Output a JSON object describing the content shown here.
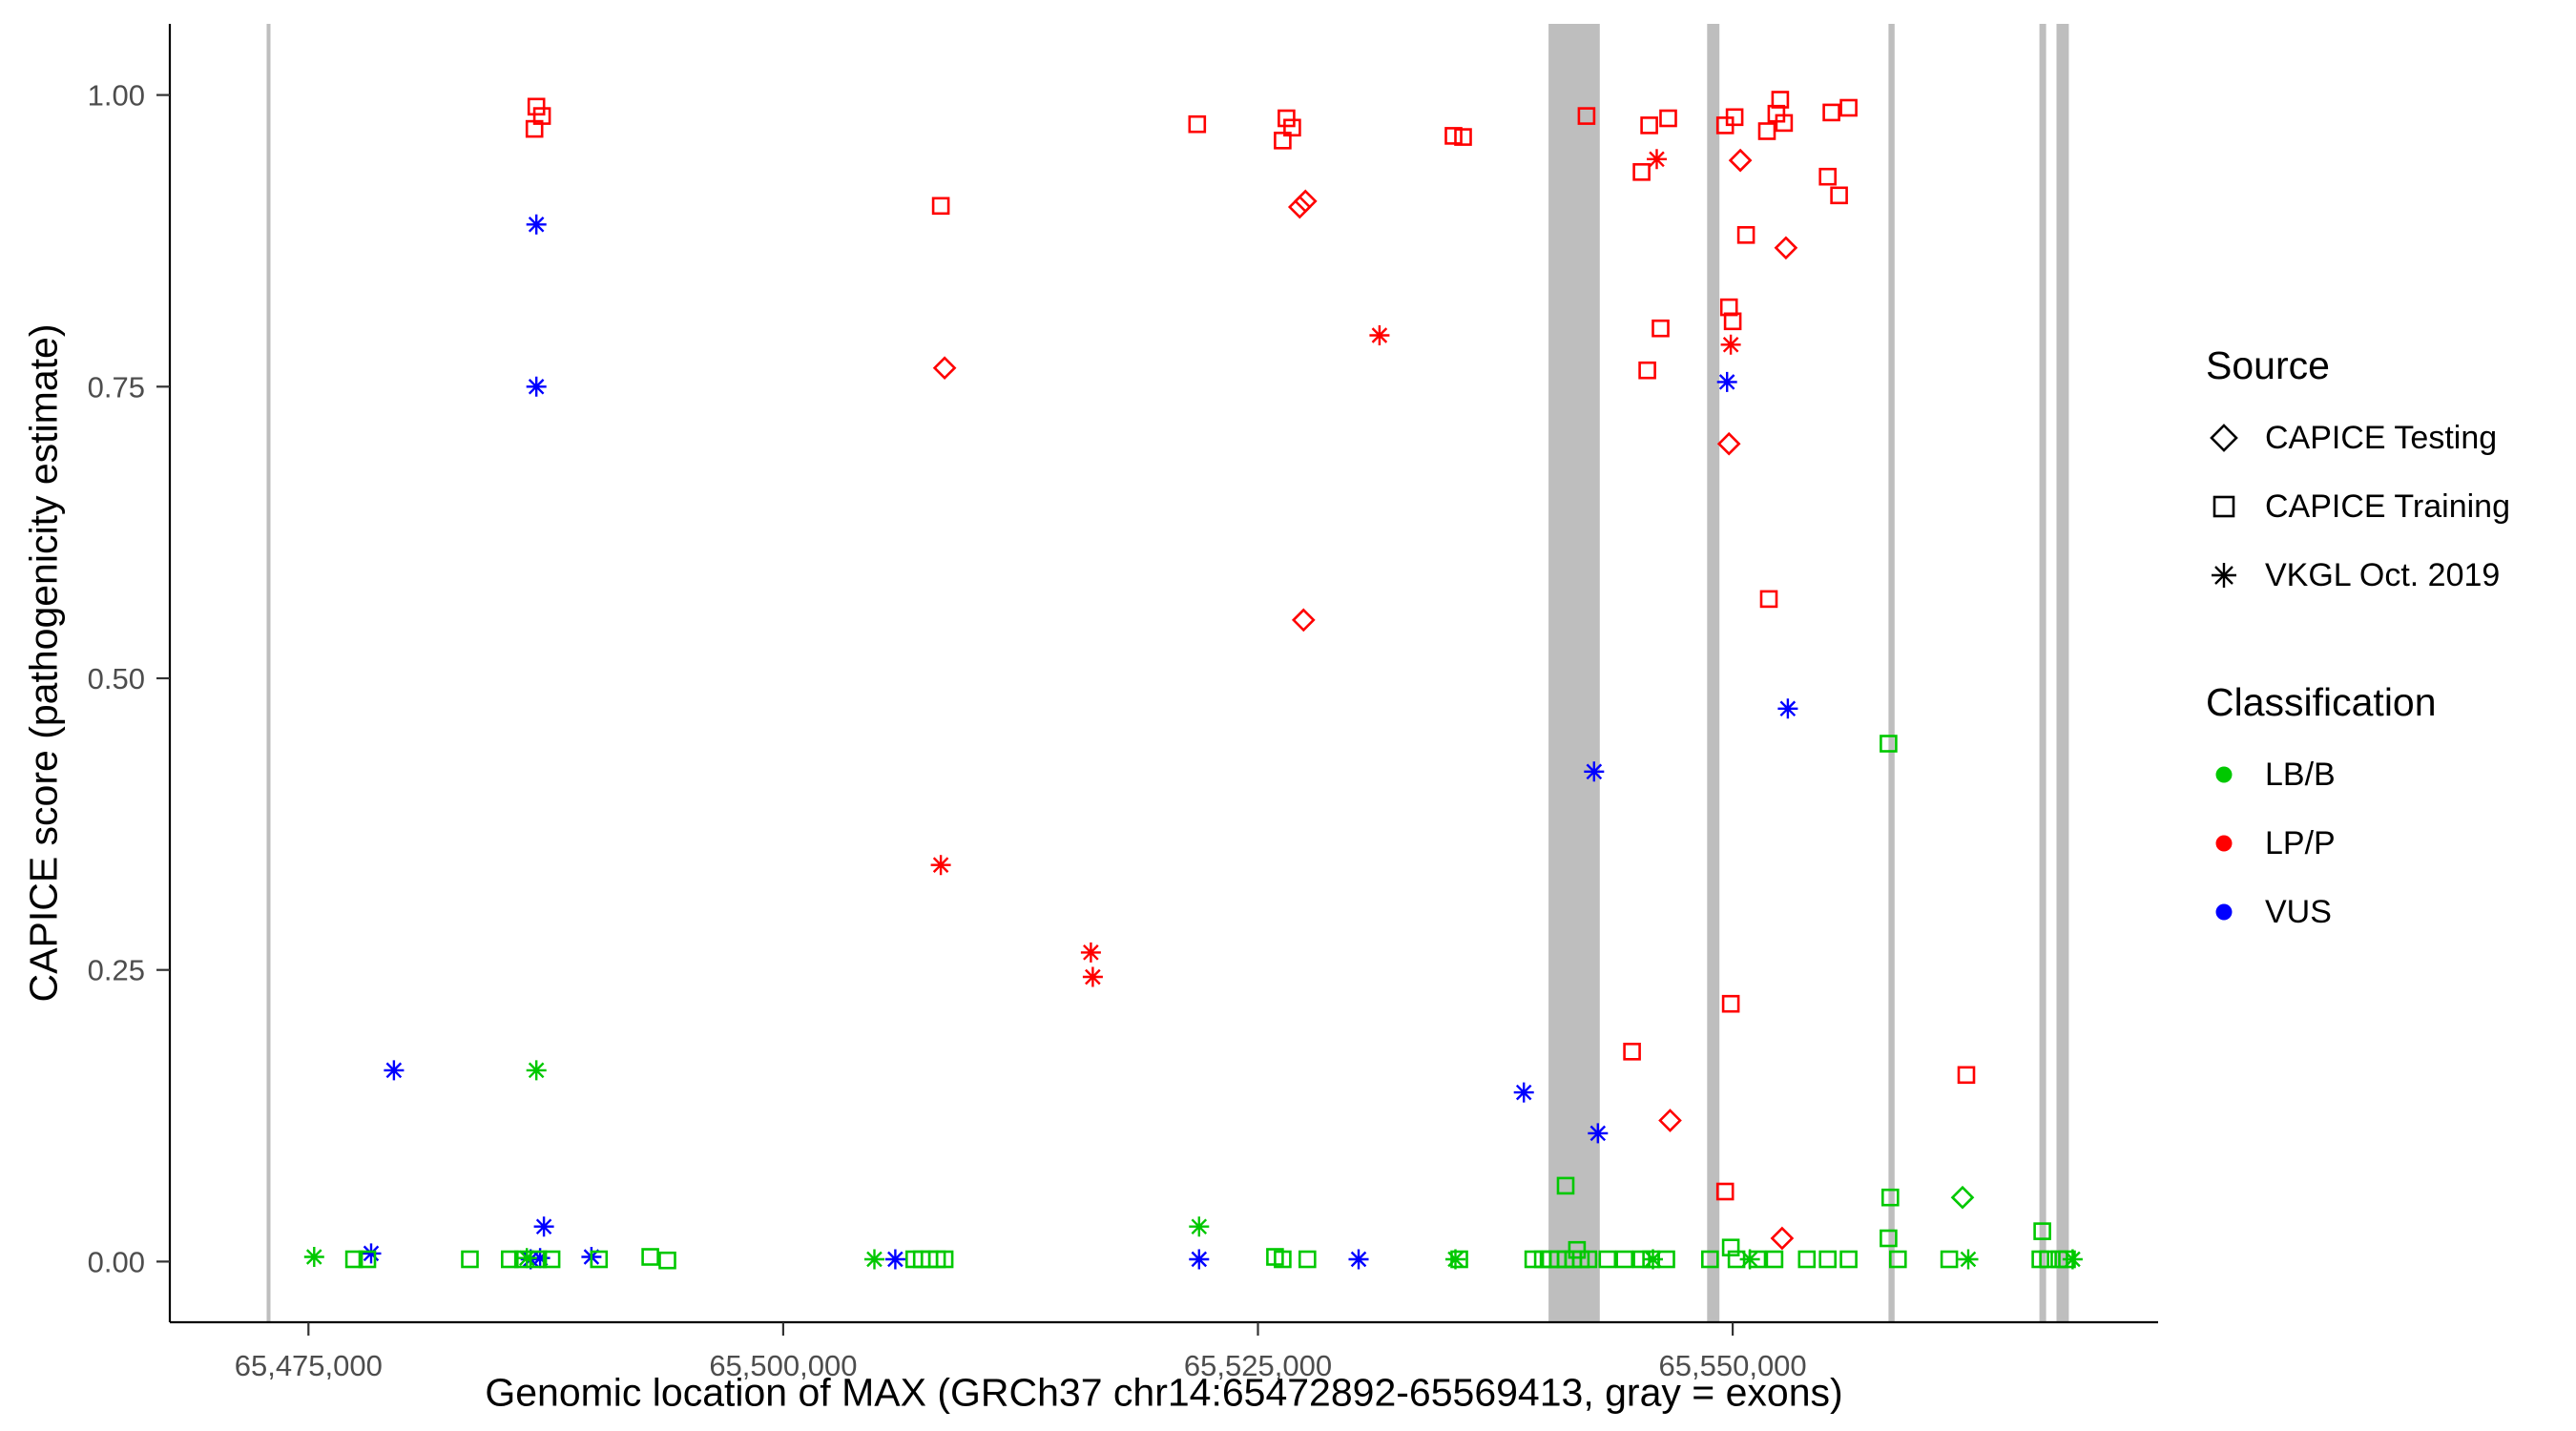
{
  "legend": {
    "source_title": "Source",
    "source_items": [
      {
        "label": "CAPICE Testing",
        "shape": "diamond"
      },
      {
        "label": "CAPICE Training",
        "shape": "square"
      },
      {
        "label": "VKGL Oct. 2019",
        "shape": "asterisk"
      }
    ],
    "class_title": "Classification",
    "class_items": [
      {
        "label": "LB/B",
        "color": "#00C800"
      },
      {
        "label": "LP/P",
        "color": "#FF0000"
      },
      {
        "label": "VUS",
        "color": "#0000FF"
      }
    ]
  },
  "chart_data": {
    "type": "scatter",
    "title": "",
    "xlabel": "Genomic location of MAX (GRCh37 chr14:65472892-65569413, gray = exons)",
    "ylabel": "CAPICE score (pathogenicity estimate)",
    "xlim": [
      65467700,
      65572400
    ],
    "ylim": [
      -0.052,
      1.061
    ],
    "grid": false,
    "legend_position": "right",
    "x_ticks": [
      {
        "v": 65475000,
        "label": "65,475,000"
      },
      {
        "v": 65500000,
        "label": "65,500,000"
      },
      {
        "v": 65525000,
        "label": "65,525,000"
      },
      {
        "v": 65550000,
        "label": "65,550,000"
      }
    ],
    "y_ticks": [
      {
        "v": 0.0,
        "label": "0.00"
      },
      {
        "v": 0.25,
        "label": "0.25"
      },
      {
        "v": 0.5,
        "label": "0.50"
      },
      {
        "v": 0.75,
        "label": "0.75"
      },
      {
        "v": 1.0,
        "label": "1.00"
      }
    ],
    "exon_color": "#BEBEBE",
    "exons": [
      [
        65472800,
        65473000
      ],
      [
        65540300,
        65543000
      ],
      [
        65548650,
        65549300
      ],
      [
        65558200,
        65558520
      ],
      [
        65566150,
        65566500
      ],
      [
        65567050,
        65567700
      ]
    ],
    "shape_by_source": {
      "test": "diamond",
      "train": "square",
      "vkgl": "asterisk"
    },
    "source_labels": {
      "test": "CAPICE Testing",
      "train": "CAPICE Training",
      "vkgl": "VKGL Oct. 2019"
    },
    "color_by_class": {
      "LB/B": "#00C800",
      "LP/P": "#FF0000",
      "VUS": "#0000FF"
    },
    "points": [
      [
        65487000,
        0.99,
        "train",
        "LP/P"
      ],
      [
        65487300,
        0.982,
        "train",
        "LP/P"
      ],
      [
        65486900,
        0.971,
        "train",
        "LP/P"
      ],
      [
        65508300,
        0.905,
        "train",
        "LP/P"
      ],
      [
        65521800,
        0.975,
        "train",
        "LP/P"
      ],
      [
        65526500,
        0.98,
        "train",
        "LP/P"
      ],
      [
        65526800,
        0.972,
        "train",
        "LP/P"
      ],
      [
        65526300,
        0.961,
        "train",
        "LP/P"
      ],
      [
        65535300,
        0.965,
        "train",
        "LP/P"
      ],
      [
        65535800,
        0.964,
        "train",
        "LP/P"
      ],
      [
        65542300,
        0.982,
        "train",
        "LP/P"
      ],
      [
        65545600,
        0.974,
        "train",
        "LP/P"
      ],
      [
        65546600,
        0.98,
        "train",
        "LP/P"
      ],
      [
        65545200,
        0.934,
        "train",
        "LP/P"
      ],
      [
        65546200,
        0.8,
        "train",
        "LP/P"
      ],
      [
        65545500,
        0.764,
        "train",
        "LP/P"
      ],
      [
        65549600,
        0.974,
        "train",
        "LP/P"
      ],
      [
        65550100,
        0.981,
        "train",
        "LP/P"
      ],
      [
        65549800,
        0.818,
        "train",
        "LP/P"
      ],
      [
        65550000,
        0.806,
        "train",
        "LP/P"
      ],
      [
        65550700,
        0.88,
        "train",
        "LP/P"
      ],
      [
        65551800,
        0.969,
        "train",
        "LP/P"
      ],
      [
        65552300,
        0.984,
        "train",
        "LP/P"
      ],
      [
        65552500,
        0.996,
        "train",
        "LP/P"
      ],
      [
        65552700,
        0.976,
        "train",
        "LP/P"
      ],
      [
        65555200,
        0.985,
        "train",
        "LP/P"
      ],
      [
        65556100,
        0.989,
        "train",
        "LP/P"
      ],
      [
        65555000,
        0.93,
        "train",
        "LP/P"
      ],
      [
        65555600,
        0.914,
        "train",
        "LP/P"
      ],
      [
        65551900,
        0.568,
        "train",
        "LP/P"
      ],
      [
        65549900,
        0.221,
        "train",
        "LP/P"
      ],
      [
        65544700,
        0.18,
        "train",
        "LP/P"
      ],
      [
        65562300,
        0.16,
        "train",
        "LP/P"
      ],
      [
        65549600,
        0.06,
        "train",
        "LP/P"
      ],
      [
        65527200,
        0.904,
        "test",
        "LP/P"
      ],
      [
        65527500,
        0.909,
        "test",
        "LP/P"
      ],
      [
        65527400,
        0.55,
        "test",
        "LP/P"
      ],
      [
        65508500,
        0.766,
        "test",
        "LP/P"
      ],
      [
        65550400,
        0.944,
        "test",
        "LP/P"
      ],
      [
        65549800,
        0.701,
        "test",
        "LP/P"
      ],
      [
        65552800,
        0.869,
        "test",
        "LP/P"
      ],
      [
        65546700,
        0.121,
        "test",
        "LP/P"
      ],
      [
        65552600,
        0.02,
        "test",
        "LP/P"
      ],
      [
        65508300,
        0.34,
        "vkgl",
        "LP/P"
      ],
      [
        65516200,
        0.265,
        "vkgl",
        "LP/P"
      ],
      [
        65516300,
        0.244,
        "vkgl",
        "LP/P"
      ],
      [
        65531400,
        0.794,
        "vkgl",
        "LP/P"
      ],
      [
        65546000,
        0.945,
        "vkgl",
        "LP/P"
      ],
      [
        65549900,
        0.786,
        "vkgl",
        "LP/P"
      ],
      [
        65487000,
        0.889,
        "vkgl",
        "VUS"
      ],
      [
        65487000,
        0.75,
        "vkgl",
        "VUS"
      ],
      [
        65549700,
        0.754,
        "vkgl",
        "VUS"
      ],
      [
        65552900,
        0.474,
        "vkgl",
        "VUS"
      ],
      [
        65542700,
        0.42,
        "vkgl",
        "VUS"
      ],
      [
        65539000,
        0.145,
        "vkgl",
        "VUS"
      ],
      [
        65542900,
        0.11,
        "vkgl",
        "VUS"
      ],
      [
        65479500,
        0.164,
        "vkgl",
        "VUS"
      ],
      [
        65487400,
        0.03,
        "vkgl",
        "VUS"
      ],
      [
        65478300,
        0.007,
        "vkgl",
        "VUS"
      ],
      [
        65489900,
        0.004,
        "vkgl",
        "VUS"
      ],
      [
        65505900,
        0.002,
        "vkgl",
        "VUS"
      ],
      [
        65521900,
        0.002,
        "vkgl",
        "VUS"
      ],
      [
        65530300,
        0.002,
        "vkgl",
        "VUS"
      ],
      [
        65486700,
        0.002,
        "vkgl",
        "VUS"
      ],
      [
        65487200,
        0.003,
        "vkgl",
        "VUS"
      ],
      [
        65487000,
        0.164,
        "vkgl",
        "LB/B"
      ],
      [
        65521900,
        0.03,
        "vkgl",
        "LB/B"
      ],
      [
        65475300,
        0.004,
        "vkgl",
        "LB/B"
      ],
      [
        65486500,
        0.003,
        "vkgl",
        "LB/B"
      ],
      [
        65504800,
        0.002,
        "vkgl",
        "LB/B"
      ],
      [
        65535400,
        0.002,
        "vkgl",
        "LB/B"
      ],
      [
        65545800,
        0.002,
        "vkgl",
        "LB/B"
      ],
      [
        65550900,
        0.002,
        "vkgl",
        "LB/B"
      ],
      [
        65562400,
        0.002,
        "vkgl",
        "LB/B"
      ],
      [
        65567900,
        0.002,
        "vkgl",
        "LB/B"
      ],
      [
        65562100,
        0.055,
        "test",
        "LB/B"
      ],
      [
        65541200,
        0.065,
        "train",
        "LB/B"
      ],
      [
        65541800,
        0.01,
        "train",
        "LB/B"
      ],
      [
        65558200,
        0.444,
        "train",
        "LB/B"
      ],
      [
        65558300,
        0.055,
        "train",
        "LB/B"
      ],
      [
        65558200,
        0.02,
        "train",
        "LB/B"
      ],
      [
        65566300,
        0.026,
        "train",
        "LB/B"
      ],
      [
        65477400,
        0.002,
        "train",
        "LB/B"
      ],
      [
        65478100,
        0.002,
        "train",
        "LB/B"
      ],
      [
        65483500,
        0.002,
        "train",
        "LB/B"
      ],
      [
        65485600,
        0.002,
        "train",
        "LB/B"
      ],
      [
        65486300,
        0.002,
        "train",
        "LB/B"
      ],
      [
        65487100,
        0.002,
        "train",
        "LB/B"
      ],
      [
        65487800,
        0.002,
        "train",
        "LB/B"
      ],
      [
        65490300,
        0.002,
        "train",
        "LB/B"
      ],
      [
        65493000,
        0.004,
        "train",
        "LB/B"
      ],
      [
        65493900,
        0.001,
        "train",
        "LB/B"
      ],
      [
        65506900,
        0.002,
        "train",
        "LB/B"
      ],
      [
        65507300,
        0.002,
        "train",
        "LB/B"
      ],
      [
        65507700,
        0.002,
        "train",
        "LB/B"
      ],
      [
        65508100,
        0.002,
        "train",
        "LB/B"
      ],
      [
        65508500,
        0.002,
        "train",
        "LB/B"
      ],
      [
        65525900,
        0.004,
        "train",
        "LB/B"
      ],
      [
        65526300,
        0.002,
        "train",
        "LB/B"
      ],
      [
        65527600,
        0.002,
        "train",
        "LB/B"
      ],
      [
        65535600,
        0.002,
        "train",
        "LB/B"
      ],
      [
        65539500,
        0.002,
        "train",
        "LB/B"
      ],
      [
        65540000,
        0.002,
        "train",
        "LB/B"
      ],
      [
        65540400,
        0.002,
        "train",
        "LB/B"
      ],
      [
        65540800,
        0.002,
        "train",
        "LB/B"
      ],
      [
        65541200,
        0.002,
        "train",
        "LB/B"
      ],
      [
        65541600,
        0.002,
        "train",
        "LB/B"
      ],
      [
        65542000,
        0.002,
        "train",
        "LB/B"
      ],
      [
        65542400,
        0.002,
        "train",
        "LB/B"
      ],
      [
        65543400,
        0.002,
        "train",
        "LB/B"
      ],
      [
        65544300,
        0.002,
        "train",
        "LB/B"
      ],
      [
        65545200,
        0.002,
        "train",
        "LB/B"
      ],
      [
        65545700,
        0.002,
        "train",
        "LB/B"
      ],
      [
        65546500,
        0.002,
        "train",
        "LB/B"
      ],
      [
        65548800,
        0.002,
        "train",
        "LB/B"
      ],
      [
        65549900,
        0.012,
        "train",
        "LB/B"
      ],
      [
        65550200,
        0.002,
        "train",
        "LB/B"
      ],
      [
        65551300,
        0.002,
        "train",
        "LB/B"
      ],
      [
        65552200,
        0.002,
        "train",
        "LB/B"
      ],
      [
        65553900,
        0.002,
        "train",
        "LB/B"
      ],
      [
        65555000,
        0.002,
        "train",
        "LB/B"
      ],
      [
        65556100,
        0.002,
        "train",
        "LB/B"
      ],
      [
        65558700,
        0.002,
        "train",
        "LB/B"
      ],
      [
        65561400,
        0.002,
        "train",
        "LB/B"
      ],
      [
        65566200,
        0.002,
        "train",
        "LB/B"
      ],
      [
        65566600,
        0.002,
        "train",
        "LB/B"
      ],
      [
        65567200,
        0.002,
        "train",
        "LB/B"
      ],
      [
        65567600,
        0.002,
        "train",
        "LB/B"
      ]
    ]
  }
}
